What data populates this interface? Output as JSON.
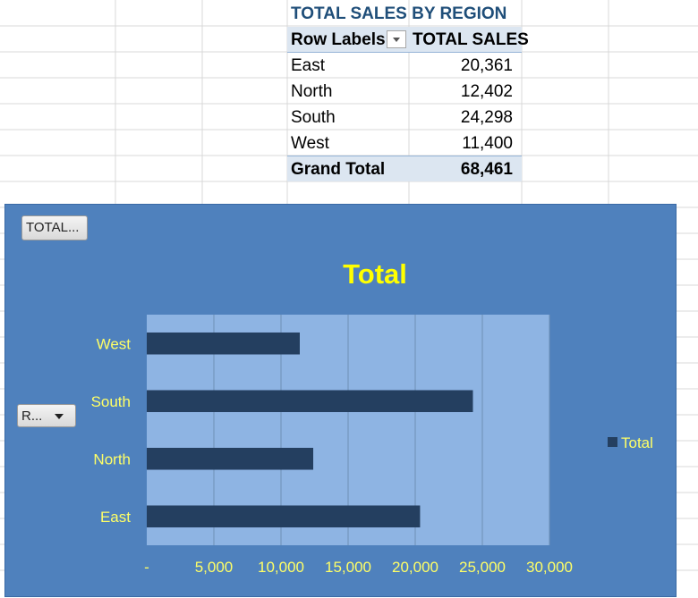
{
  "pivot": {
    "title": "TOTAL SALES BY REGION",
    "col_row_labels": "Row Labels",
    "col_total_sales": "TOTAL SALES",
    "rows": [
      {
        "label": "East",
        "value": "20,361"
      },
      {
        "label": "North",
        "value": "12,402"
      },
      {
        "label": "South",
        "value": "24,298"
      },
      {
        "label": "West",
        "value": "11,400"
      }
    ],
    "grand_total_label": "Grand Total",
    "grand_total_value": "68,461"
  },
  "chart_buttons": {
    "filter_label": "TOTAL...",
    "axis_field_label": "R..."
  },
  "colors": {
    "chart_background": "#4f81bd",
    "plot_background": "#8eb4e3",
    "bar": "#243f60",
    "text_yellow": "#ffff00",
    "axis_text": "#ffff66"
  },
  "chart_data": {
    "type": "bar",
    "orientation": "horizontal",
    "title": "Total",
    "categories": [
      "East",
      "North",
      "South",
      "West"
    ],
    "series": [
      {
        "name": "Total",
        "values": [
          20361,
          12402,
          24298,
          11400
        ]
      }
    ],
    "xlim": [
      0,
      30000
    ],
    "x_ticks": [
      0,
      5000,
      10000,
      15000,
      20000,
      25000,
      30000
    ],
    "x_tick_labels": [
      "-",
      "5,000",
      "10,000",
      "15,000",
      "20,000",
      "25,000",
      "30,000"
    ],
    "grid": true,
    "legend_position": "right"
  }
}
